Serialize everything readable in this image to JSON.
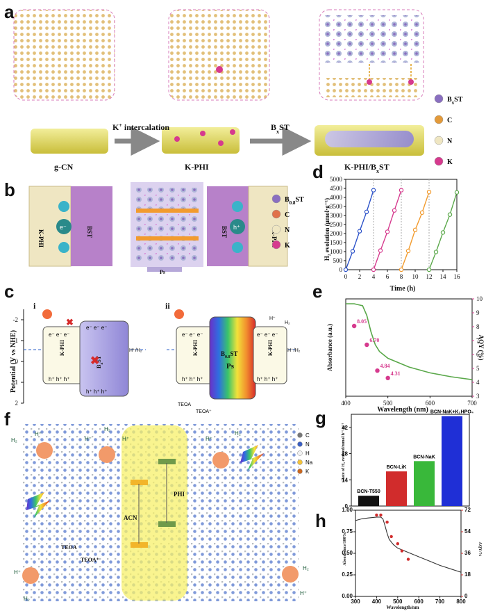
{
  "panels": {
    "a": {
      "letter": "a",
      "gcn": "g-CN",
      "kphi": "K-PHI",
      "kphi_bst": "K-PHI/B",
      "kphi_bst_sub": "x",
      "kphi_bst_tail": "ST",
      "k_intercalation": "K",
      "k_intercalation_sup": "+",
      "k_intercalation_tail": " intercalation",
      "bxst_arrow": "B",
      "bxst_arrow_sub": "x",
      "bxst_arrow_tail": "ST",
      "legend": [
        {
          "label": "B",
          "sub": "x",
          "tail": "ST",
          "color": "#8a6fc0"
        },
        {
          "label": "C",
          "sub": "",
          "tail": "",
          "color": "#e39a3a"
        },
        {
          "label": "N",
          "sub": "",
          "tail": "",
          "color": "#efe6c2"
        },
        {
          "label": "K",
          "sub": "",
          "tail": "",
          "color": "#d63a8e"
        }
      ]
    },
    "b": {
      "letter": "b",
      "kphi_left": "K-PHI",
      "bst_left": "BST",
      "bst_right": "BST",
      "kphi_right": "K-PHI",
      "ps": "Ps",
      "electron": "e⁻",
      "hole": "h⁺",
      "legend": [
        {
          "label": "B",
          "sub": "0.8",
          "tail": "ST",
          "color": "#8a6fc0"
        },
        {
          "label": "C",
          "sub": "",
          "tail": "",
          "color": "#e0714a"
        },
        {
          "label": "N",
          "sub": "",
          "tail": "",
          "color": "#efe6c2"
        },
        {
          "label": "K",
          "sub": "",
          "tail": "",
          "color": "#d63a8e"
        }
      ]
    },
    "c": {
      "letter": "c",
      "sub_i": "i",
      "sub_ii": "ii",
      "ylabel": "Potential (V vs NHE)",
      "yticks": [
        "-2",
        "-1",
        "0",
        "1",
        "2"
      ],
      "kphi": "K-PHI",
      "bst": "B",
      "bst_sub": "x",
      "bst_tail": "ST",
      "b08st": "B",
      "b08st_sub": "0.8",
      "b08st_tail": "ST",
      "ps": "Ps",
      "redox": "H⁺/H₂",
      "teoa": "TEOA",
      "teoa_plus": "TEOA⁺",
      "hplus": "H⁺",
      "h2": "H₂",
      "e_row": "e⁻ e⁻ e⁻",
      "h_row": "h⁺ h⁺ h⁺"
    },
    "d": {
      "letter": "d",
      "ylabel": "H₂ evolution (μmol·g⁻¹)",
      "xlabel": "Time (h)",
      "xticks": [
        "0",
        "2",
        "4",
        "6",
        "8",
        "10",
        "12",
        "14",
        "16"
      ],
      "yticks": [
        "0",
        "500",
        "1000",
        "1500",
        "2000",
        "2500",
        "3000",
        "3500",
        "4000",
        "4500",
        "5000"
      ]
    },
    "e": {
      "letter": "e",
      "ylabel": "Absorbance (a.u.)",
      "ylabel_right": "AQY (%)",
      "xlabel": "Wavelength (nm)",
      "xticks": [
        "400",
        "500",
        "600",
        "700"
      ],
      "yticks_right": [
        "3",
        "4",
        "5",
        "6",
        "7",
        "8",
        "9",
        "10"
      ],
      "points": [
        {
          "label": "8.05"
        },
        {
          "label": "6.70"
        },
        {
          "label": "4.84"
        },
        {
          "label": "4.31"
        }
      ]
    },
    "f": {
      "letter": "f",
      "acn": "ACN",
      "phi": "PHI",
      "teoa": "TEOA",
      "teoa_plus": "TEOA⁺",
      "h2": "H₂",
      "hplus": "H⁺",
      "legend": [
        {
          "label": "C",
          "color": "#777777"
        },
        {
          "label": "N",
          "color": "#3a5ec2"
        },
        {
          "label": "H",
          "color": "#f2f2f2"
        },
        {
          "label": "Na",
          "color": "#f2c23a"
        },
        {
          "label": "K",
          "color": "#c9661e"
        }
      ]
    },
    "g": {
      "letter": "g",
      "ylabel": "Rate of H₂ evolved/mmol h⁻¹ g⁻¹",
      "yticks": [
        "0",
        "14",
        "28",
        "42"
      ]
    },
    "h": {
      "letter": "h",
      "ylabel": "Absorbance/100%",
      "ylabel_right": "AQY/%",
      "xlabel": "Wavelength/nm",
      "xticks": [
        "300",
        "400",
        "500",
        "600",
        "700",
        "800"
      ],
      "yticks": [
        "0.00",
        "0.25",
        "0.50",
        "0.75",
        "1.00"
      ],
      "yticks_right": [
        "0",
        "18",
        "36",
        "54",
        "72"
      ]
    }
  },
  "chart_data": [
    {
      "type": "scatter",
      "panel": "d",
      "xlabel": "Time (h)",
      "ylabel": "H₂ evolution (μmol·g⁻¹)",
      "xlim": [
        0,
        16
      ],
      "ylim": [
        0,
        5000
      ],
      "series": [
        {
          "color": "#2c52c9",
          "x": [
            0,
            1,
            2,
            3,
            4
          ],
          "y": [
            0,
            1020,
            2130,
            3200,
            4400
          ]
        },
        {
          "color": "#d63a8e",
          "x": [
            4,
            5,
            6,
            7,
            8
          ],
          "y": [
            0,
            1060,
            2100,
            3280,
            4400
          ]
        },
        {
          "color": "#f29b2e",
          "x": [
            8,
            9,
            10,
            11,
            12
          ],
          "y": [
            0,
            1040,
            2200,
            3160,
            4300
          ]
        },
        {
          "color": "#5aa84a",
          "x": [
            12,
            13,
            14,
            15,
            16
          ],
          "y": [
            0,
            980,
            2060,
            3050,
            4280
          ]
        }
      ]
    },
    {
      "type": "line",
      "panel": "e",
      "xlabel": "Wavelength (nm)",
      "ylabel": "Absorbance (a.u.)",
      "ylabel_right": "AQY (%)",
      "xlim": [
        400,
        700
      ],
      "ylim_right": [
        3,
        10
      ],
      "absorbance_x": [
        400,
        420,
        440,
        450,
        460,
        470,
        480,
        500,
        550,
        600,
        650,
        700
      ],
      "absorbance_y": [
        0.95,
        0.95,
        0.93,
        0.83,
        0.66,
        0.53,
        0.46,
        0.39,
        0.3,
        0.24,
        0.2,
        0.17
      ],
      "aqy_x": [
        420,
        450,
        475,
        500
      ],
      "aqy_y": [
        8.05,
        6.7,
        4.84,
        4.31
      ]
    },
    {
      "type": "bar",
      "panel": "g",
      "ylabel": "Rate of H₂ evolved/mmol h⁻¹ g⁻¹",
      "ylim": [
        0,
        49
      ],
      "categories": [
        "BCN-T550",
        "BCN-LiK",
        "BCN-NaK",
        "BCN-NaK+K₂HPO₄"
      ],
      "values": [
        5.5,
        18.5,
        24.0,
        48.0
      ],
      "colors": [
        "#111111",
        "#d12c2c",
        "#39b83a",
        "#1f2fd6"
      ]
    },
    {
      "type": "line",
      "panel": "h",
      "xlabel": "Wavelength/nm",
      "ylabel": "Absorbance/100%",
      "ylabel_right": "AQY/%",
      "xlim": [
        300,
        800
      ],
      "ylim": [
        0,
        1.0
      ],
      "ylim_right": [
        0,
        72
      ],
      "absorbance_x": [
        300,
        330,
        360,
        400,
        420,
        430,
        440,
        450,
        460,
        480,
        500,
        550,
        600,
        650,
        700,
        750,
        800
      ],
      "absorbance_y": [
        0.88,
        0.9,
        0.91,
        0.92,
        0.92,
        0.9,
        0.82,
        0.73,
        0.66,
        0.6,
        0.56,
        0.51,
        0.46,
        0.41,
        0.36,
        0.32,
        0.28
      ],
      "aqy_x": [
        400,
        420,
        450,
        470,
        500,
        520,
        550
      ],
      "aqy_y": [
        68,
        68,
        62,
        50,
        44,
        38,
        31
      ]
    }
  ]
}
